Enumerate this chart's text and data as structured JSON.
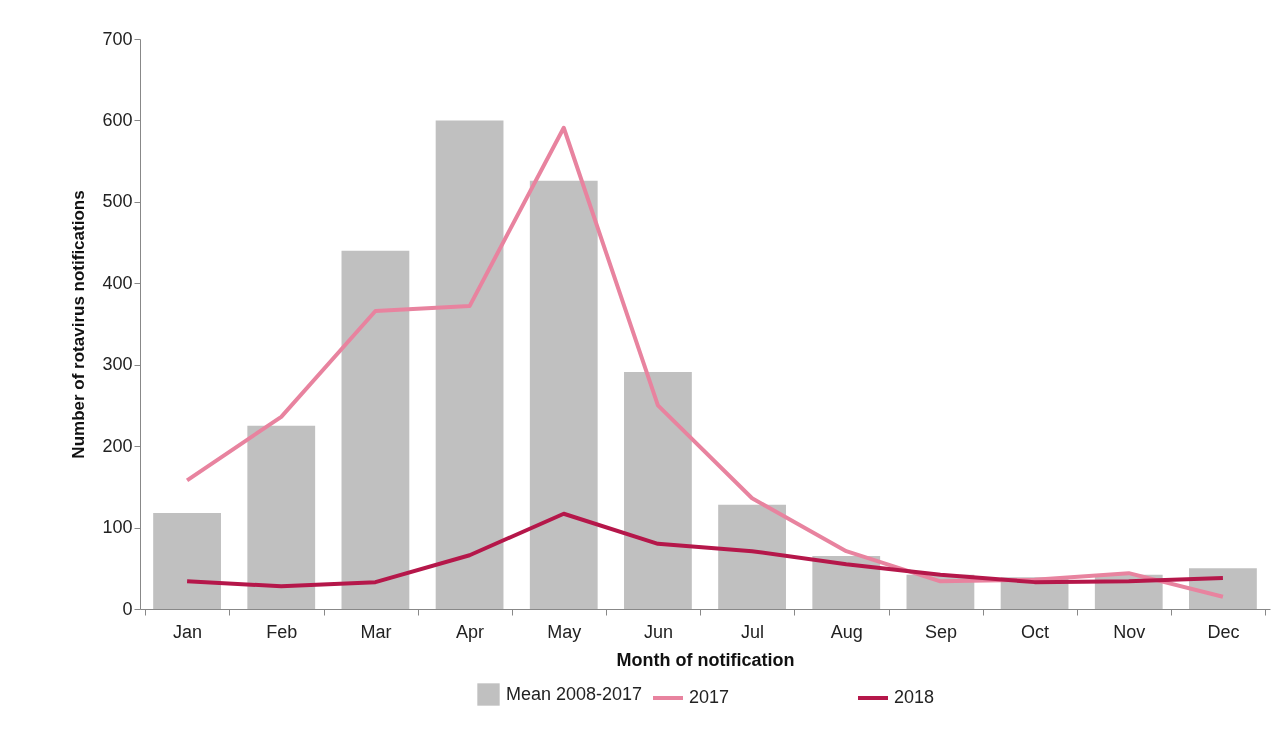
{
  "chart_data": {
    "type": "bar",
    "xlabel": "Month of notification",
    "ylabel": "Number of rotavirus notifications",
    "categories": [
      "Jan",
      "Feb",
      "Mar",
      "Apr",
      "May",
      "Jun",
      "Jul",
      "Aug",
      "Sep",
      "Oct",
      "Nov",
      "Dec"
    ],
    "series": [
      {
        "name": "Mean 2008-2017",
        "type": "bar",
        "color": "#c0c0c0",
        "values": [
          118,
          225,
          440,
          600,
          526,
          291,
          128,
          65,
          42,
          39,
          42,
          50
        ]
      },
      {
        "name": "2017",
        "type": "line",
        "color": "#e8839f",
        "values": [
          158,
          236,
          366,
          372,
          591,
          250,
          136,
          71,
          34,
          36,
          44,
          15
        ]
      },
      {
        "name": "2018",
        "type": "line",
        "color": "#b5174a",
        "values": [
          34,
          28,
          33,
          66,
          117,
          80,
          71,
          55,
          42,
          33,
          34,
          38
        ]
      }
    ],
    "ylim": [
      0,
      700
    ],
    "yticks": [
      0,
      100,
      200,
      300,
      400,
      500,
      600,
      700
    ],
    "grid": false,
    "legend": "bottom"
  }
}
